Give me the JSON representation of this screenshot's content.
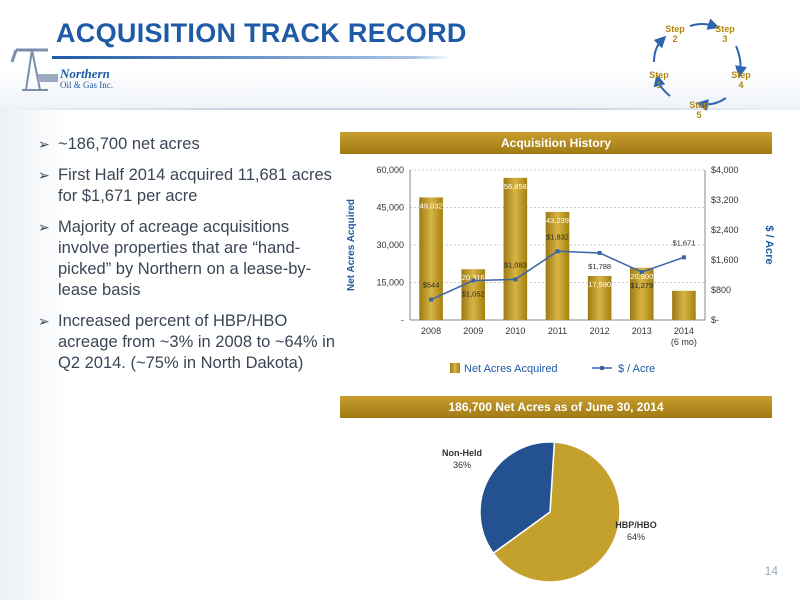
{
  "slide": {
    "title": "ACQUISITION TRACK RECORD",
    "page_number": "14",
    "logo": {
      "name": "Northern",
      "sub": "Oil & Gas Inc."
    }
  },
  "cycle_steps": [
    {
      "label": "Step\n1"
    },
    {
      "label": "Step\n2"
    },
    {
      "label": "Step\n3"
    },
    {
      "label": "Step\n4"
    },
    {
      "label": "Step\n5"
    }
  ],
  "bullets": [
    "~186,700 net acres",
    "First Half 2014 acquired 11,681 acres for $1,671 per acre",
    "Majority of acreage acquisitions involve properties that are “hand-picked” by Northern on a lease-by-lease basis",
    "Increased percent of HBP/HBO acreage from ~3% in 2008 to ~64% in Q2 2014. (~75% in North Dakota)"
  ],
  "colors": {
    "title_blue": "#1f5aa6",
    "gold": "#b8901e",
    "pie_gold": "#c4a02c",
    "pie_blue": "#24518f",
    "line_blue": "#3a63a8"
  },
  "chart_data": [
    {
      "type": "bar",
      "title": "Acquisition History",
      "categories": [
        "2008",
        "2009",
        "2010",
        "2011",
        "2012",
        "2013",
        "2014\n(6 mo)"
      ],
      "series": [
        {
          "name": "Net Acres Acquired",
          "type": "bar",
          "axis": "left",
          "values": [
            49032,
            20316,
            56858,
            43239,
            17590,
            20900,
            11681
          ],
          "labels": [
            "49,032",
            "20,316",
            "56,858",
            "43,239",
            "17,590",
            "20,900",
            ""
          ]
        },
        {
          "name": "$ / Acre",
          "type": "line",
          "axis": "right",
          "values": [
            544,
            1052,
            1083,
            1832,
            1788,
            1279,
            1671
          ],
          "labels": [
            "$544",
            "$1,052",
            "$1,083",
            "$1,832",
            "$1,788",
            "$1,279",
            "$1,671"
          ]
        }
      ],
      "ylabel": "Net Acres Acquired",
      "y2label": "$ / Acre",
      "ylim": [
        0,
        60000
      ],
      "y2lim": [
        0,
        4000
      ],
      "yticks": [
        "-",
        "15,000",
        "30,000",
        "45,000",
        "60,000"
      ],
      "y2ticks": [
        "$-",
        "$800",
        "$1,600",
        "$2,400",
        "$3,200",
        "$4,000"
      ],
      "grid": true,
      "legend": "bottom"
    },
    {
      "type": "pie",
      "title": "186,700 Net Acres as of June 30, 2014",
      "slices": [
        {
          "label": "HBP/HBO",
          "value": 64,
          "display": "64%"
        },
        {
          "label": "Non-Held",
          "value": 36,
          "display": "36%"
        }
      ]
    }
  ]
}
